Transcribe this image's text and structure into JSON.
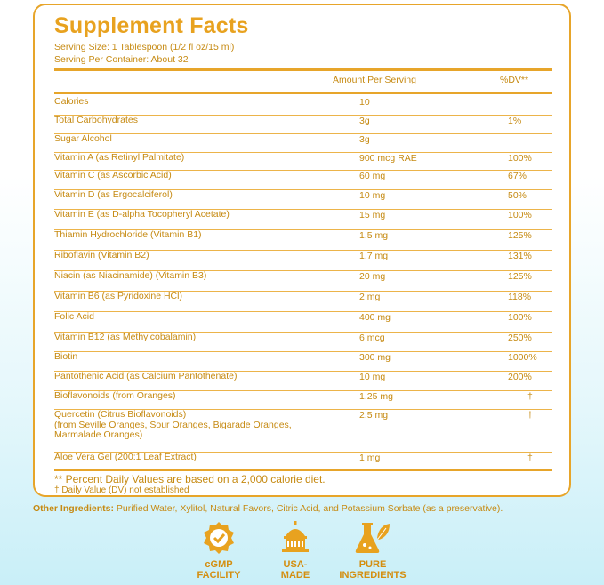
{
  "title": "Supplement Facts",
  "serving_size": "Serving Size: 1 Tablespoon (1/2 fl oz/15 ml)",
  "servings_per_container": "Serving Per Container: About 32",
  "header": {
    "amount": "Amount Per Serving",
    "dv": "%DV**"
  },
  "rows": [
    {
      "name": "Calories",
      "amount": "10",
      "dv": ""
    },
    {
      "name": "Total Carbohydrates",
      "amount": "3g",
      "dv": "1%"
    },
    {
      "name": "Sugar Alcohol",
      "amount": "3g",
      "dv": ""
    },
    {
      "name": "Vitamin A (as Retinyl Palmitate)",
      "amount": "900 mcg RAE",
      "dv": "100%"
    },
    {
      "name": "Vitamin C (as Ascorbic Acid)",
      "amount": "60 mg",
      "dv": "67%"
    },
    {
      "name": "Vitamin D (as Ergocalciferol)",
      "amount": "10 mg",
      "dv": "50%"
    },
    {
      "name": "Vitamin E (as D-alpha Tocopheryl Acetate)",
      "amount": "15 mg",
      "dv": "100%"
    },
    {
      "name": "Thiamin Hydrochloride (Vitamin B1)",
      "amount": "1.5 mg",
      "dv": "125%"
    },
    {
      "name": "Riboflavin (Vitamin B2)",
      "amount": "1.7 mg",
      "dv": "131%"
    },
    {
      "name": "Niacin (as Niacinamide) (Vitamin B3)",
      "amount": "20 mg",
      "dv": "125%"
    },
    {
      "name": "Vitamin B6 (as Pyridoxine HCl)",
      "amount": "2 mg",
      "dv": "118%"
    },
    {
      "name": "Folic Acid",
      "amount": "400 mg",
      "dv": "100%"
    },
    {
      "name": "Vitamin B12 (as Methylcobalamin)",
      "amount": "6 mcg",
      "dv": "250%"
    },
    {
      "name": "Biotin",
      "amount": "300 mg",
      "dv": "1000%"
    },
    {
      "name": "Pantothenic Acid (as Calcium Pantothenate)",
      "amount": "10 mg",
      "dv": "200%"
    },
    {
      "name": "Bioflavonoids (from Oranges)",
      "amount": "1.25 mg",
      "dv": "†"
    },
    {
      "name": "Quercetin (Citrus Bioflavonoids)",
      "sub": [
        "(from Seville Oranges, Sour Oranges, Bigarade Oranges,",
        "Marmalade Oranges)"
      ],
      "amount": "2.5 mg",
      "dv": "†"
    },
    {
      "name": "Aloe Vera Gel (200:1 Leaf Extract)",
      "amount": "1 mg",
      "dv": "†"
    }
  ],
  "footnote_dv": "** Percent Daily Values are based on a 2,000 calorie diet.",
  "footnote_dagger": "† Daily Value (DV) not established",
  "other_ingredients": {
    "label": "Other Ingredients:",
    "text": " Purified Water, Xylitol, Natural Favors, Citric Acid, and Potassium Sorbate (as a preservative)."
  },
  "badges": [
    {
      "icon": "cgmp-badge-icon",
      "line1": "cGMP",
      "line2": "FACILITY"
    },
    {
      "icon": "usa-capitol-icon",
      "line1": "USA-",
      "line2": "MADE"
    },
    {
      "icon": "flask-leaf-icon",
      "line1": "PURE",
      "line2": "INGREDIENTS"
    }
  ],
  "colors": {
    "accent": "#e8a21f",
    "text": "#c68a12",
    "border": "#e7a52a"
  }
}
